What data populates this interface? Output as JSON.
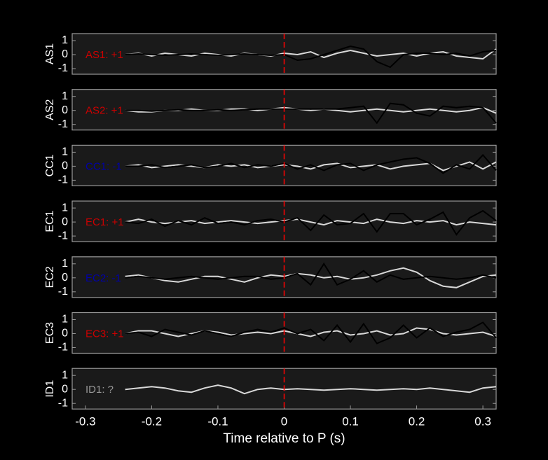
{
  "chart_data": [
    {
      "type": "line",
      "ylabel": "AS1",
      "annotation": {
        "text": "AS1: +1",
        "color": "#cc0000"
      },
      "vline": {
        "x": 0,
        "color": "#ff0000"
      },
      "xlim": [
        -0.32,
        0.32
      ],
      "ylim": [
        -1.4,
        1.5
      ],
      "yticks": [
        -1,
        0,
        1
      ],
      "x": [
        -0.24,
        -0.22,
        -0.2,
        -0.18,
        -0.16,
        -0.14,
        -0.12,
        -0.1,
        -0.08,
        -0.06,
        -0.04,
        -0.02,
        0,
        0.02,
        0.04,
        0.06,
        0.08,
        0.1,
        0.12,
        0.14,
        0.16,
        0.18,
        0.2,
        0.22,
        0.24,
        0.26,
        0.28,
        0.3,
        0.32
      ],
      "series": [
        {
          "color": "#d9d9d9",
          "values": [
            0,
            0.1,
            -0.1,
            0.1,
            0,
            -0.1,
            0.1,
            0,
            -0.1,
            0.1,
            0,
            -0.1,
            0.1,
            0,
            0.2,
            -0.2,
            0.1,
            0.3,
            0.1,
            -0.1,
            0,
            0.1,
            -0.1,
            0.1,
            0.2,
            -0.1,
            -0.2,
            -0.3,
            0.4
          ]
        },
        {
          "color": "#000000",
          "values": [
            0,
            0.05,
            0,
            -0.05,
            0,
            0.05,
            0,
            -0.05,
            0,
            0.05,
            0,
            -0.05,
            0,
            -0.4,
            -0.3,
            0,
            0.3,
            0.6,
            0.4,
            -0.5,
            -0.9,
            0,
            0.1,
            0.1,
            0,
            0.1,
            -0.1,
            0.2,
            0.3
          ]
        }
      ]
    },
    {
      "type": "line",
      "ylabel": "AS2",
      "annotation": {
        "text": "AS2: +1",
        "color": "#cc0000"
      },
      "vline": {
        "x": 0,
        "color": "#ff0000"
      },
      "xlim": [
        -0.32,
        0.32
      ],
      "ylim": [
        -1.4,
        1.5
      ],
      "yticks": [
        -1,
        0,
        1
      ],
      "x": [
        -0.24,
        -0.22,
        -0.2,
        -0.18,
        -0.16,
        -0.14,
        -0.12,
        -0.1,
        -0.08,
        -0.06,
        -0.04,
        -0.02,
        0,
        0.02,
        0.04,
        0.06,
        0.08,
        0.1,
        0.12,
        0.14,
        0.16,
        0.18,
        0.2,
        0.22,
        0.24,
        0.26,
        0.28,
        0.3,
        0.32
      ],
      "series": [
        {
          "color": "#d9d9d9",
          "values": [
            0,
            -0.1,
            -0.1,
            0,
            0,
            0.1,
            0,
            0,
            0.1,
            0.1,
            0,
            0.1,
            0.2,
            0.1,
            0,
            0.1,
            0,
            -0.1,
            0,
            0.1,
            0,
            -0.1,
            0,
            0.1,
            0,
            -0.1,
            0,
            0.2,
            -0.2
          ]
        },
        {
          "color": "#000000",
          "values": [
            0,
            0,
            -0.05,
            0,
            0.05,
            0,
            0,
            0.05,
            0,
            0.05,
            0.1,
            0.1,
            0.1,
            0.1,
            0.1,
            0.1,
            0.1,
            0.2,
            0.3,
            -0.9,
            0.5,
            0.4,
            -0.2,
            -0.4,
            0.3,
            0.2,
            0.3,
            0.2,
            -0.9
          ]
        }
      ]
    },
    {
      "type": "line",
      "ylabel": "CC1",
      "annotation": {
        "text": "CC1: -1",
        "color": "#0000aa"
      },
      "vline": {
        "x": 0,
        "color": "#ff0000"
      },
      "xlim": [
        -0.32,
        0.32
      ],
      "ylim": [
        -1.4,
        1.5
      ],
      "yticks": [
        -1,
        0,
        1
      ],
      "x": [
        -0.24,
        -0.22,
        -0.2,
        -0.18,
        -0.16,
        -0.14,
        -0.12,
        -0.1,
        -0.08,
        -0.06,
        -0.04,
        -0.02,
        0,
        0.02,
        0.04,
        0.06,
        0.08,
        0.1,
        0.12,
        0.14,
        0.16,
        0.18,
        0.2,
        0.22,
        0.24,
        0.26,
        0.28,
        0.3,
        0.32
      ],
      "series": [
        {
          "color": "#d9d9d9",
          "values": [
            0,
            0.1,
            -0.1,
            0,
            0.1,
            0,
            -0.1,
            0.1,
            0,
            0.1,
            -0.1,
            0,
            0.1,
            0,
            -0.2,
            0.1,
            0.2,
            -0.1,
            0,
            0.1,
            -0.2,
            0,
            0.1,
            0.2,
            -0.3,
            0,
            0.3,
            -0.2,
            0.3
          ]
        },
        {
          "color": "#000000",
          "values": [
            0,
            0,
            0.1,
            -0.1,
            0,
            0.1,
            -0.1,
            0,
            0.2,
            -0.1,
            0.1,
            0,
            0.2,
            -0.2,
            0.1,
            -0.3,
            0.1,
            0.2,
            -0.3,
            0.1,
            0.3,
            0.5,
            0.6,
            0.2,
            -0.5,
            0.1,
            -0.2,
            0.8,
            -0.3
          ]
        }
      ]
    },
    {
      "type": "line",
      "ylabel": "EC1",
      "annotation": {
        "text": "EC1: +1",
        "color": "#cc0000"
      },
      "vline": {
        "x": 0,
        "color": "#ff0000"
      },
      "xlim": [
        -0.32,
        0.32
      ],
      "ylim": [
        -1.4,
        1.5
      ],
      "yticks": [
        -1,
        0,
        1
      ],
      "x": [
        -0.24,
        -0.22,
        -0.2,
        -0.18,
        -0.16,
        -0.14,
        -0.12,
        -0.1,
        -0.08,
        -0.06,
        -0.04,
        -0.02,
        0,
        0.02,
        0.04,
        0.06,
        0.08,
        0.1,
        0.12,
        0.14,
        0.16,
        0.18,
        0.2,
        0.22,
        0.24,
        0.26,
        0.28,
        0.3,
        0.32
      ],
      "series": [
        {
          "color": "#d9d9d9",
          "values": [
            0,
            0.2,
            0,
            -0.1,
            0,
            0.1,
            -0.1,
            0,
            0.1,
            0,
            -0.1,
            0,
            0.1,
            0.2,
            0,
            -0.2,
            0.1,
            0,
            -0.1,
            0.2,
            0,
            -0.1,
            0.1,
            0,
            0.1,
            -0.2,
            0,
            -0.1,
            -0.2
          ]
        },
        {
          "color": "#000000",
          "values": [
            0,
            -0.1,
            0.2,
            -0.3,
            0.1,
            -0.2,
            0.3,
            -0.1,
            0,
            -0.2,
            0.1,
            0.2,
            0,
            0.3,
            -0.6,
            0.5,
            -0.2,
            -0.1,
            0.6,
            -0.7,
            0.6,
            0.6,
            -0.2,
            0.2,
            0.7,
            -0.9,
            0.3,
            0.8,
            0.1
          ]
        }
      ]
    },
    {
      "type": "line",
      "ylabel": "EC2",
      "annotation": {
        "text": "EC2: -1",
        "color": "#0000aa"
      },
      "vline": {
        "x": 0,
        "color": "#ff0000"
      },
      "xlim": [
        -0.32,
        0.32
      ],
      "ylim": [
        -1.4,
        1.5
      ],
      "yticks": [
        -1,
        0,
        1
      ],
      "x": [
        -0.24,
        -0.22,
        -0.2,
        -0.18,
        -0.16,
        -0.14,
        -0.12,
        -0.1,
        -0.08,
        -0.06,
        -0.04,
        -0.02,
        0,
        0.02,
        0.04,
        0.06,
        0.08,
        0.1,
        0.12,
        0.14,
        0.16,
        0.18,
        0.2,
        0.22,
        0.24,
        0.26,
        0.28,
        0.3,
        0.32
      ],
      "series": [
        {
          "color": "#d9d9d9",
          "values": [
            0.1,
            0.2,
            0,
            -0.2,
            -0.3,
            -0.1,
            0.1,
            0.1,
            -0.1,
            -0.3,
            0,
            0.2,
            0.1,
            0.3,
            0.2,
            0,
            0.1,
            -0.1,
            0,
            0.2,
            0.5,
            0.7,
            0.4,
            -0.2,
            -0.6,
            -0.7,
            -0.3,
            0.1,
            0.2
          ]
        },
        {
          "color": "#000000",
          "values": [
            0,
            0.1,
            0,
            -0.1,
            0,
            0.1,
            0,
            -0.1,
            0,
            0.1,
            0.1,
            -0.1,
            0,
            0.3,
            -0.5,
            1,
            -0.5,
            -0.1,
            0.5,
            -0.3,
            0.2,
            -0.1,
            0,
            0.1,
            0,
            -0.1,
            0,
            0.2,
            0
          ]
        }
      ]
    },
    {
      "type": "line",
      "ylabel": "EC3",
      "annotation": {
        "text": "EC3: +1",
        "color": "#cc0000"
      },
      "vline": {
        "x": 0,
        "color": "#ff0000"
      },
      "xlim": [
        -0.32,
        0.32
      ],
      "ylim": [
        -1.4,
        1.5
      ],
      "yticks": [
        -1,
        0,
        1
      ],
      "x": [
        -0.24,
        -0.22,
        -0.2,
        -0.18,
        -0.16,
        -0.14,
        -0.12,
        -0.1,
        -0.08,
        -0.06,
        -0.04,
        -0.02,
        0,
        0.02,
        0.04,
        0.06,
        0.08,
        0.1,
        0.12,
        0.14,
        0.16,
        0.18,
        0.2,
        0.22,
        0.24,
        0.26,
        0.28,
        0.3,
        0.32
      ],
      "series": [
        {
          "color": "#d9d9d9",
          "values": [
            0,
            0.2,
            0.2,
            0,
            -0.2,
            0,
            0.2,
            0.1,
            -0.1,
            0,
            0.1,
            0,
            0.2,
            0,
            -0.2,
            0.1,
            0.2,
            -0.1,
            0,
            0.2,
            -0.1,
            0,
            0.4,
            0.3,
            0,
            -0.1,
            0,
            0.1,
            -0.2
          ]
        },
        {
          "color": "#000000",
          "values": [
            0,
            0.1,
            -0.2,
            0.3,
            0.1,
            -0.1,
            0.2,
            0,
            -0.2,
            0.1,
            0.3,
            0.1,
            0.4,
            0,
            0.3,
            -0.5,
            0.6,
            -0.6,
            0.7,
            -0.7,
            -0.3,
            0.6,
            -0.3,
            0.4,
            -0.2,
            0.1,
            0.3,
            0.8,
            -0.3
          ]
        }
      ]
    },
    {
      "type": "line",
      "ylabel": "ID1",
      "annotation": {
        "text": "ID1: ?",
        "color": "#999999"
      },
      "vline": {
        "x": 0,
        "color": "#ff0000"
      },
      "xlim": [
        -0.32,
        0.32
      ],
      "ylim": [
        -1.4,
        1.5
      ],
      "yticks": [
        -1,
        0,
        1
      ],
      "xticks": [
        -0.3,
        -0.2,
        -0.1,
        0,
        0.1,
        0.2,
        0.3
      ],
      "xlabel": "Time relative to P (s)",
      "x": [
        -0.24,
        -0.22,
        -0.2,
        -0.18,
        -0.16,
        -0.14,
        -0.12,
        -0.1,
        -0.08,
        -0.06,
        -0.04,
        -0.02,
        0,
        0.02,
        0.04,
        0.06,
        0.08,
        0.1,
        0.12,
        0.14,
        0.16,
        0.18,
        0.2,
        0.22,
        0.24,
        0.26,
        0.28,
        0.3,
        0.32
      ],
      "series": [
        {
          "color": "#d9d9d9",
          "values": [
            0,
            0.1,
            0.2,
            0.1,
            -0.1,
            -0.2,
            0.1,
            0.3,
            0.1,
            -0.3,
            0,
            0.1,
            0,
            0.05,
            0,
            -0.05,
            0,
            0.05,
            0,
            -0.05,
            0,
            0.05,
            0,
            0.1,
            0,
            -0.1,
            -0.2,
            0.1,
            0.2
          ]
        }
      ]
    }
  ]
}
